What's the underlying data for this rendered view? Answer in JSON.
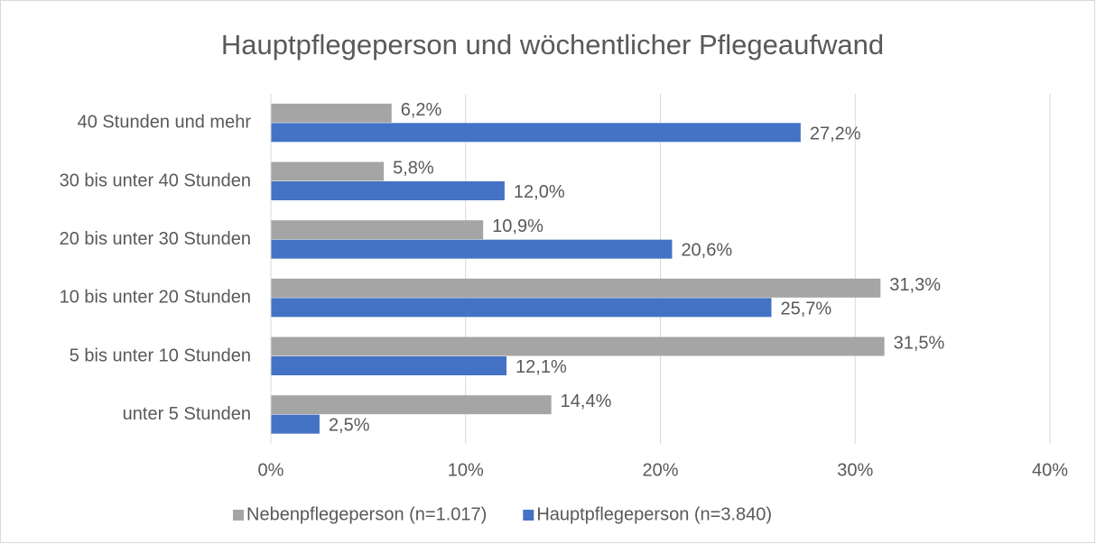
{
  "chart_data": {
    "type": "hbar",
    "title": "Hauptpflegeperson und wöchentlicher Pflegeaufwand",
    "categories": [
      "40 Stunden und mehr",
      "30 bis unter 40 Stunden",
      "20 bis unter 30 Stunden",
      "10 bis unter 20 Stunden",
      "5 bis unter 10 Stunden",
      "unter 5 Stunden"
    ],
    "series": [
      {
        "name": "Nebenpflegeperson (n=1.017)",
        "color": "#a5a5a5",
        "values": [
          6.2,
          5.8,
          10.9,
          31.3,
          31.5,
          14.4
        ],
        "value_labels": [
          "6,2%",
          "5,8%",
          "10,9%",
          "31,3%",
          "31,5%",
          "14,4%"
        ]
      },
      {
        "name": "Hauptpflegeperson (n=3.840)",
        "color": "#4472c4",
        "values": [
          27.2,
          12.0,
          20.6,
          25.7,
          12.1,
          2.5
        ],
        "value_labels": [
          "27,2%",
          "12,0%",
          "20,6%",
          "25,7%",
          "12,1%",
          "2,5%"
        ]
      }
    ],
    "xlim": [
      0,
      40
    ],
    "xticks": [
      {
        "value": 0,
        "label": "0%"
      },
      {
        "value": 10,
        "label": "10%"
      },
      {
        "value": 20,
        "label": "20%"
      },
      {
        "value": 30,
        "label": "30%"
      },
      {
        "value": 40,
        "label": "40%"
      }
    ],
    "grid": true,
    "legend": "bottom"
  }
}
